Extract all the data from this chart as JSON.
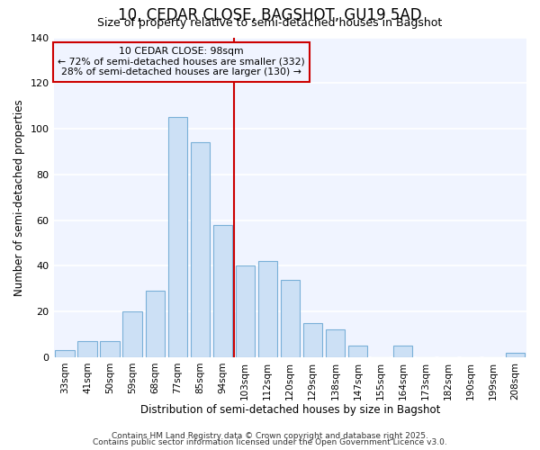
{
  "title": "10, CEDAR CLOSE, BAGSHOT, GU19 5AD",
  "subtitle": "Size of property relative to semi-detached houses in Bagshot",
  "xlabel": "Distribution of semi-detached houses by size in Bagshot",
  "ylabel": "Number of semi-detached properties",
  "categories": [
    "33sqm",
    "41sqm",
    "50sqm",
    "59sqm",
    "68sqm",
    "77sqm",
    "85sqm",
    "94sqm",
    "103sqm",
    "112sqm",
    "120sqm",
    "129sqm",
    "138sqm",
    "147sqm",
    "155sqm",
    "164sqm",
    "173sqm",
    "182sqm",
    "190sqm",
    "199sqm",
    "208sqm"
  ],
  "values": [
    3,
    7,
    7,
    20,
    29,
    105,
    94,
    58,
    40,
    42,
    34,
    15,
    12,
    5,
    0,
    5,
    0,
    0,
    0,
    0,
    2
  ],
  "bar_color": "#cce0f5",
  "bar_edge_color": "#7ab0d8",
  "vline_x_index": 8,
  "vline_color": "#cc0000",
  "annotation_title": "10 CEDAR CLOSE: 98sqm",
  "annotation_line1": "← 72% of semi-detached houses are smaller (332)",
  "annotation_line2": "28% of semi-detached houses are larger (130) →",
  "annotation_box_color": "#cc0000",
  "ylim": [
    0,
    140
  ],
  "yticks": [
    0,
    20,
    40,
    60,
    80,
    100,
    120,
    140
  ],
  "background_color": "#ffffff",
  "plot_bg_color": "#f0f4ff",
  "grid_color": "#ffffff",
  "footer1": "Contains HM Land Registry data © Crown copyright and database right 2025.",
  "footer2": "Contains public sector information licensed under the Open Government Licence v3.0."
}
